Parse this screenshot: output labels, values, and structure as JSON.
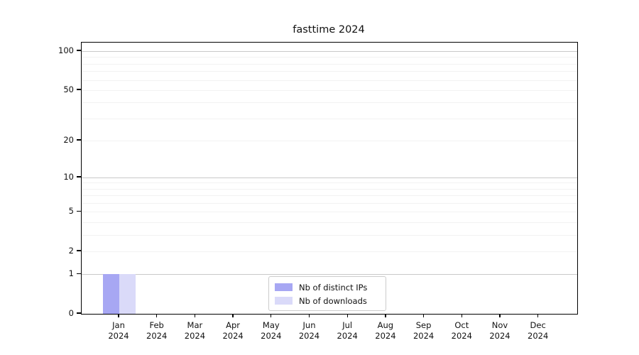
{
  "title": "fasttime 2024",
  "chart_data": {
    "type": "bar",
    "title": "fasttime 2024",
    "categories": [
      {
        "month": "Jan",
        "year": "2024"
      },
      {
        "month": "Feb",
        "year": "2024"
      },
      {
        "month": "Mar",
        "year": "2024"
      },
      {
        "month": "Apr",
        "year": "2024"
      },
      {
        "month": "May",
        "year": "2024"
      },
      {
        "month": "Jun",
        "year": "2024"
      },
      {
        "month": "Jul",
        "year": "2024"
      },
      {
        "month": "Aug",
        "year": "2024"
      },
      {
        "month": "Sep",
        "year": "2024"
      },
      {
        "month": "Oct",
        "year": "2024"
      },
      {
        "month": "Nov",
        "year": "2024"
      },
      {
        "month": "Dec",
        "year": "2024"
      }
    ],
    "series": [
      {
        "name": "Nb of distinct IPs",
        "color": "#a7a7f3",
        "values": [
          1,
          0,
          0,
          0,
          0,
          0,
          0,
          0,
          0,
          0,
          0,
          0
        ]
      },
      {
        "name": "Nb of downloads",
        "color": "#dadaf9",
        "values": [
          1,
          0,
          0,
          0,
          0,
          0,
          0,
          0,
          0,
          0,
          0,
          0
        ]
      }
    ],
    "xlabel": "",
    "ylabel": "",
    "yscale": "log1p",
    "ylim": [
      0,
      116.5
    ],
    "ytick_values": [
      100,
      50,
      20,
      10,
      5,
      2,
      1,
      0
    ],
    "ytick_labels": [
      "100",
      "50",
      "20",
      "10",
      "5",
      "2",
      "1",
      "0"
    ],
    "major_grid_values": [
      1,
      10,
      100
    ],
    "minor_grid_values": [
      2,
      3,
      4,
      5,
      6,
      7,
      8,
      9,
      20,
      30,
      40,
      50,
      60,
      70,
      80,
      90
    ],
    "grid": true,
    "legend_position": "lower center"
  },
  "legend": {
    "items": [
      {
        "label": "Nb of distinct IPs",
        "color": "#a7a7f3"
      },
      {
        "label": "Nb of downloads",
        "color": "#dadaf9"
      }
    ]
  }
}
